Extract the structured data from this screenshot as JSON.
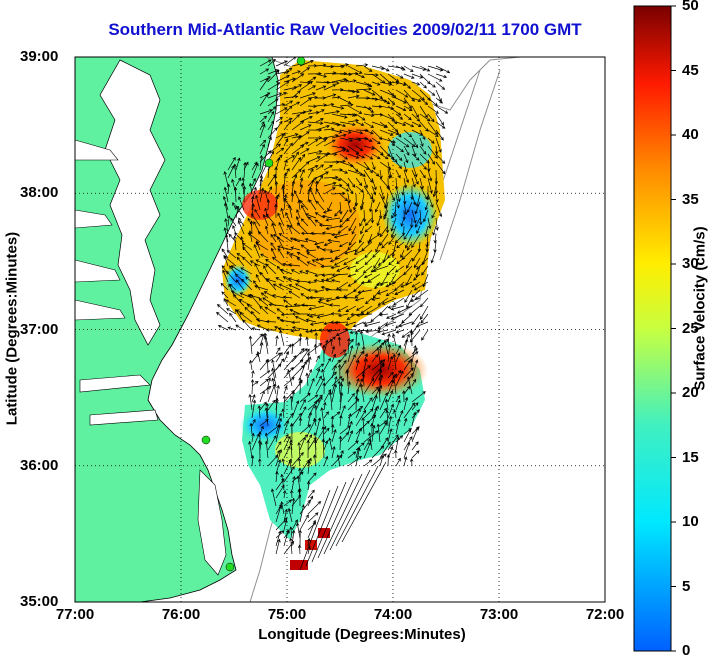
{
  "title": "Southern Mid-Atlantic Raw Velocities 2009/02/11 1700 GMT",
  "xlabel": "Longitude (Degrees:Minutes)",
  "ylabel": "Latitude (Degrees:Minutes)",
  "colorbar_label": "Surface Velocity (cm/s)",
  "x_ticks": [
    "77:00",
    "76:00",
    "75:00",
    "74:00",
    "73:00",
    "72:00"
  ],
  "y_ticks": [
    "39:00",
    "38:00",
    "37:00",
    "36:00",
    "35:00"
  ],
  "colorbar_ticks": [
    "0",
    "5",
    "10",
    "15",
    "20",
    "25",
    "30",
    "35",
    "40",
    "45",
    "50"
  ],
  "colors": {
    "land": "#5ff0a0",
    "water": "#ffffff",
    "title": "#1010d0",
    "station": "#22dd22",
    "arrow": "#000000"
  },
  "map": {
    "lon_range": [
      -77,
      -72
    ],
    "lat_range": [
      35,
      39
    ],
    "color_range": [
      0,
      50
    ],
    "grid": "dotted"
  }
}
